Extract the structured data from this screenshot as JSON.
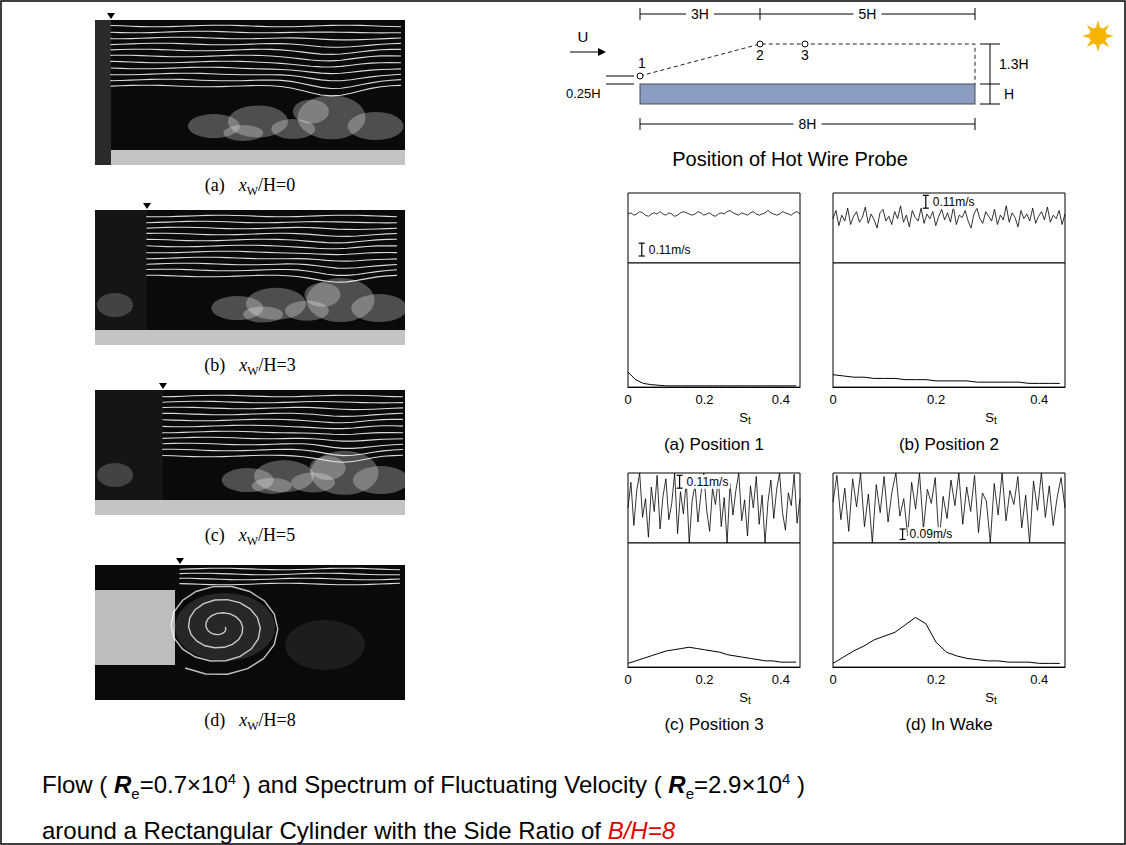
{
  "photos": [
    {
      "label": "(a)",
      "caption": [
        "x",
        "W",
        "/H=0"
      ]
    },
    {
      "label": "(b)",
      "caption": [
        "x",
        "W",
        "/H=3"
      ]
    },
    {
      "label": "(c)",
      "caption": [
        "x",
        "W",
        "/H=5"
      ]
    },
    {
      "label": "(d)",
      "caption": [
        "x",
        "W",
        "/H=8"
      ]
    }
  ],
  "probe_diagram": {
    "title": "Position of Hot Wire Probe",
    "labels": {
      "flow": "U",
      "upstream": "3H",
      "downstream": "5H",
      "height_above": "1.3H",
      "front_offset": "0.25H",
      "thickness": "H",
      "length": "8H"
    },
    "points": [
      "1",
      "2",
      "3"
    ]
  },
  "chart_data": [
    {
      "type": "line",
      "label": "(a)",
      "title": "Position 1",
      "tick_labels": "x",
      "signal": {
        "ylim": [
          0,
          0.6
        ],
        "scale_bar": {
          "value": 0.11,
          "label": "0.11m/s"
        },
        "values": [
          0.42,
          0.43,
          0.41,
          0.42,
          0.44,
          0.43,
          0.41,
          0.4,
          0.42,
          0.43,
          0.42,
          0.44,
          0.42,
          0.41,
          0.43,
          0.42,
          0.4,
          0.41,
          0.43,
          0.44,
          0.43,
          0.42,
          0.41,
          0.42,
          0.44,
          0.43,
          0.41,
          0.42,
          0.43,
          0.41,
          0.4,
          0.42,
          0.43,
          0.42,
          0.44,
          0.45,
          0.43,
          0.42,
          0.41,
          0.43,
          0.42,
          0.41,
          0.43,
          0.44,
          0.42,
          0.41,
          0.42,
          0.43,
          0.45,
          0.43,
          0.42,
          0.41,
          0.42,
          0.44,
          0.43,
          0.42,
          0.41,
          0.43,
          0.44,
          0.42
        ]
      },
      "spectrum": {
        "xlabel": "St",
        "xlim": [
          0,
          0.45
        ],
        "xticks": [
          0,
          0.2,
          0.4
        ],
        "ylim": [
          0,
          1
        ],
        "x": [
          0,
          0.02,
          0.04,
          0.06,
          0.08,
          0.1,
          0.12,
          0.14,
          0.16,
          0.18,
          0.2,
          0.22,
          0.24,
          0.26,
          0.28,
          0.3,
          0.32,
          0.34,
          0.36,
          0.38,
          0.4,
          0.42,
          0.44
        ],
        "values": [
          0.12,
          0.06,
          0.03,
          0.02,
          0.015,
          0.01,
          0.01,
          0.01,
          0.01,
          0.01,
          0.01,
          0.01,
          0.01,
          0.01,
          0.01,
          0.01,
          0.01,
          0.01,
          0.01,
          0.01,
          0.01,
          0.01,
          0.01
        ]
      }
    },
    {
      "type": "line",
      "label": "(b)",
      "title": "Position 2",
      "tick_labels": "x",
      "signal": {
        "ylim": [
          0,
          0.6
        ],
        "scale_bar": {
          "value": 0.11,
          "label": "0.11m/s"
        },
        "values": [
          0.38,
          0.45,
          0.32,
          0.41,
          0.36,
          0.47,
          0.33,
          0.4,
          0.44,
          0.35,
          0.39,
          0.48,
          0.34,
          0.42,
          0.37,
          0.3,
          0.43,
          0.46,
          0.36,
          0.4,
          0.33,
          0.44,
          0.38,
          0.49,
          0.35,
          0.41,
          0.31,
          0.45,
          0.39,
          0.36,
          0.47,
          0.34,
          0.42,
          0.38,
          0.44,
          0.32,
          0.4,
          0.46,
          0.37,
          0.43,
          0.35,
          0.48,
          0.33,
          0.41,
          0.39,
          0.45,
          0.36,
          0.3,
          0.42,
          0.47,
          0.38,
          0.34,
          0.44,
          0.4,
          0.36,
          0.46,
          0.33,
          0.41,
          0.37,
          0.49,
          0.35,
          0.43,
          0.39,
          0.31,
          0.45,
          0.38,
          0.42,
          0.36,
          0.47,
          0.34,
          0.4,
          0.44,
          0.37,
          0.48,
          0.35,
          0.41,
          0.38,
          0.45,
          0.33,
          0.42
        ]
      },
      "spectrum": {
        "xlabel": "St",
        "xlim": [
          0,
          0.45
        ],
        "xticks": [
          0,
          0.2,
          0.4
        ],
        "ylim": [
          0,
          1
        ],
        "x": [
          0,
          0.02,
          0.04,
          0.06,
          0.08,
          0.1,
          0.12,
          0.14,
          0.16,
          0.18,
          0.2,
          0.22,
          0.24,
          0.26,
          0.28,
          0.3,
          0.32,
          0.34,
          0.36,
          0.38,
          0.4,
          0.42,
          0.44
        ],
        "values": [
          0.1,
          0.09,
          0.08,
          0.08,
          0.07,
          0.07,
          0.07,
          0.06,
          0.06,
          0.06,
          0.05,
          0.05,
          0.05,
          0.05,
          0.04,
          0.04,
          0.04,
          0.04,
          0.04,
          0.03,
          0.03,
          0.03,
          0.03
        ]
      }
    },
    {
      "type": "line",
      "label": "(c)",
      "title": "Position 3",
      "tick_labels": "x",
      "signal": {
        "ylim": [
          0,
          0.6
        ],
        "scale_bar": {
          "value": 0.11,
          "label": "0.11m/s"
        },
        "values": [
          0.3,
          0.52,
          0.15,
          0.45,
          0.6,
          0.22,
          0.38,
          0.05,
          0.48,
          0.27,
          0.58,
          0.12,
          0.4,
          0.55,
          0.2,
          0.34,
          0.6,
          0.08,
          0.44,
          0.25,
          0.53,
          0.0,
          0.36,
          0.5,
          0.18,
          0.42,
          0.6,
          0.28,
          0.1,
          0.47,
          0.33,
          0.56,
          0.14,
          0.39,
          0.0,
          0.51,
          0.24,
          0.45,
          0.6,
          0.19,
          0.37,
          0.06,
          0.49,
          0.3,
          0.57,
          0.16,
          0.41,
          0.0,
          0.35,
          0.54,
          0.21,
          0.46,
          0.6,
          0.26,
          0.11,
          0.43,
          0.32,
          0.59,
          0.17,
          0.38
        ]
      },
      "spectrum": {
        "xlabel": "St",
        "xlim": [
          0,
          0.45
        ],
        "xticks": [
          0,
          0.2,
          0.4
        ],
        "ylim": [
          0,
          1
        ],
        "x": [
          0,
          0.02,
          0.04,
          0.06,
          0.08,
          0.1,
          0.12,
          0.14,
          0.16,
          0.18,
          0.2,
          0.22,
          0.24,
          0.26,
          0.28,
          0.3,
          0.32,
          0.34,
          0.36,
          0.38,
          0.4,
          0.42,
          0.44
        ],
        "values": [
          0.03,
          0.05,
          0.07,
          0.09,
          0.11,
          0.13,
          0.14,
          0.15,
          0.16,
          0.15,
          0.14,
          0.13,
          0.12,
          0.1,
          0.09,
          0.08,
          0.07,
          0.06,
          0.05,
          0.05,
          0.04,
          0.04,
          0.04
        ]
      }
    },
    {
      "type": "line",
      "label": "(d)",
      "title": "In Wake",
      "tick_labels": "x",
      "signal": {
        "ylim": [
          0,
          0.6
        ],
        "scale_bar": {
          "value": 0.09,
          "label": "0.09m/s"
        },
        "values": [
          0.35,
          0.58,
          0.2,
          0.47,
          0.1,
          0.55,
          0.31,
          0.6,
          0.14,
          0.42,
          0.0,
          0.5,
          0.26,
          0.57,
          0.18,
          0.44,
          0.6,
          0.23,
          0.38,
          0.06,
          0.52,
          0.29,
          0.6,
          0.12,
          0.46,
          0.34,
          0.56,
          0.0,
          0.4,
          0.21,
          0.54,
          0.32,
          0.6,
          0.16,
          0.48,
          0.27,
          0.58,
          0.09,
          0.43,
          0.36,
          0.0,
          0.51,
          0.24,
          0.6,
          0.19,
          0.45,
          0.33,
          0.57,
          0.13,
          0.41,
          0.0,
          0.53,
          0.28,
          0.6,
          0.22,
          0.49,
          0.15,
          0.39,
          0.56,
          0.3
        ]
      },
      "spectrum": {
        "xlabel": "St",
        "xlim": [
          0,
          0.45
        ],
        "xticks": [
          0,
          0.2,
          0.4
        ],
        "ylim": [
          0,
          1
        ],
        "x": [
          0,
          0.02,
          0.04,
          0.06,
          0.08,
          0.1,
          0.12,
          0.14,
          0.16,
          0.18,
          0.2,
          0.22,
          0.24,
          0.26,
          0.28,
          0.3,
          0.32,
          0.34,
          0.36,
          0.38,
          0.4,
          0.42,
          0.44
        ],
        "values": [
          0.03,
          0.08,
          0.13,
          0.17,
          0.22,
          0.25,
          0.28,
          0.34,
          0.4,
          0.35,
          0.2,
          0.12,
          0.09,
          0.07,
          0.06,
          0.05,
          0.05,
          0.04,
          0.04,
          0.04,
          0.03,
          0.03,
          0.03
        ]
      }
    }
  ],
  "caption": {
    "lines": [
      [
        {
          "text": "Flow ( "
        },
        {
          "text": "R",
          "style": "italic-bold"
        },
        {
          "text": "e",
          "style": "sub"
        },
        {
          "text": "=0.7×10"
        },
        {
          "text": "4",
          "style": "sup"
        },
        {
          "text": " ) and Spectrum of Fluctuating Velocity ( "
        },
        {
          "text": "R",
          "style": "italic-bold"
        },
        {
          "text": "e",
          "style": "sub"
        },
        {
          "text": "=2.9×10"
        },
        {
          "text": "4",
          "style": "sup"
        },
        {
          "text": " )"
        }
      ],
      [
        {
          "text": "around a Rectangular Cylinder with the Side Ratio of "
        },
        {
          "text": "B/H=8",
          "style": "red-italic"
        }
      ]
    ]
  }
}
